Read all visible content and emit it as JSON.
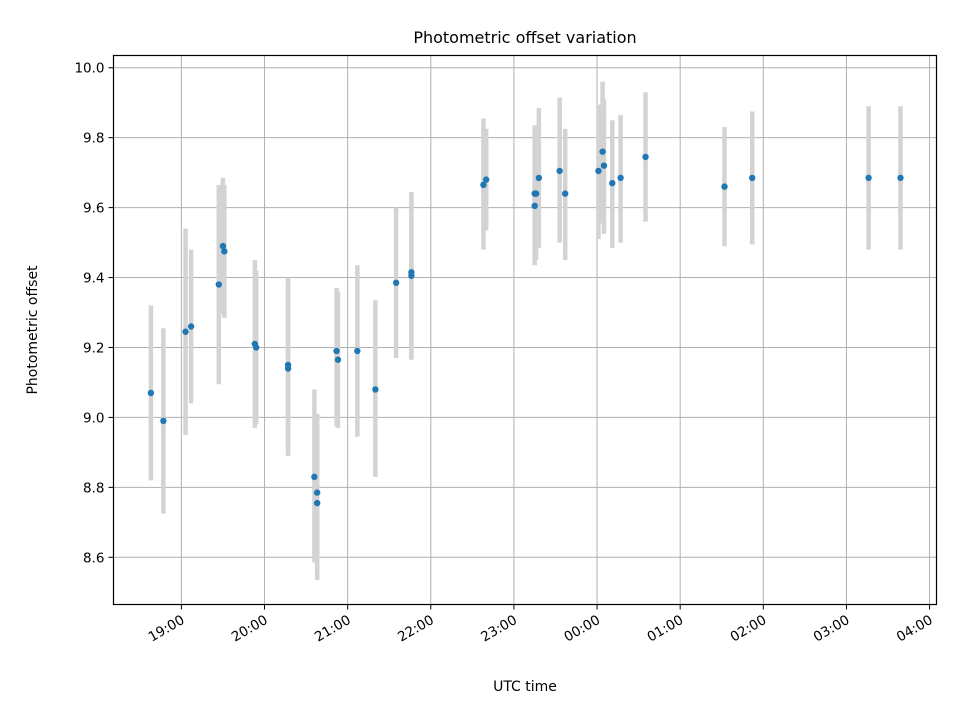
{
  "chart_data": {
    "type": "scatter",
    "title": "Photometric offset variation",
    "xlabel": "UTC time",
    "ylabel": "Photometric offset",
    "x_axis_type": "time",
    "x_ticks": [
      "19:00",
      "20:00",
      "21:00",
      "22:00",
      "23:00",
      "00:00",
      "01:00",
      "02:00",
      "03:00",
      "04:00"
    ],
    "xlim": [
      "18:11",
      "04:05"
    ],
    "y_ticks": [
      8.6,
      8.8,
      9.0,
      9.2,
      9.4,
      9.6,
      9.8,
      10.0
    ],
    "ylim": [
      8.465,
      10.035
    ],
    "grid": true,
    "marker_color": "#1f77b4",
    "errorbar_color": "#d3d3d3",
    "points": [
      {
        "t": "18:38",
        "y": 9.07,
        "ylo": 8.82,
        "yhi": 9.32
      },
      {
        "t": "18:47",
        "y": 8.99,
        "ylo": 8.725,
        "yhi": 9.255
      },
      {
        "t": "19:03",
        "y": 9.245,
        "ylo": 8.95,
        "yhi": 9.54
      },
      {
        "t": "19:07",
        "y": 9.26,
        "ylo": 9.04,
        "yhi": 9.48
      },
      {
        "t": "19:27",
        "y": 9.38,
        "ylo": 9.095,
        "yhi": 9.665
      },
      {
        "t": "19:30",
        "y": 9.49,
        "ylo": 9.295,
        "yhi": 9.685
      },
      {
        "t": "19:31",
        "y": 9.475,
        "ylo": 9.285,
        "yhi": 9.665
      },
      {
        "t": "19:53",
        "y": 9.21,
        "ylo": 8.97,
        "yhi": 9.45
      },
      {
        "t": "19:54",
        "y": 9.2,
        "ylo": 8.98,
        "yhi": 9.42
      },
      {
        "t": "20:17",
        "y": 9.15,
        "ylo": 8.9,
        "yhi": 9.4
      },
      {
        "t": "20:17",
        "y": 9.14,
        "ylo": 8.89,
        "yhi": 9.39
      },
      {
        "t": "20:36",
        "y": 8.83,
        "ylo": 8.585,
        "yhi": 9.08
      },
      {
        "t": "20:38",
        "y": 8.785,
        "ylo": 8.56,
        "yhi": 9.01
      },
      {
        "t": "20:38",
        "y": 8.755,
        "ylo": 8.535,
        "yhi": 8.98
      },
      {
        "t": "20:52",
        "y": 9.19,
        "ylo": 8.975,
        "yhi": 9.37
      },
      {
        "t": "20:53",
        "y": 9.165,
        "ylo": 8.97,
        "yhi": 9.36
      },
      {
        "t": "21:07",
        "y": 9.19,
        "ylo": 8.945,
        "yhi": 9.435
      },
      {
        "t": "21:20",
        "y": 9.08,
        "ylo": 8.83,
        "yhi": 9.335
      },
      {
        "t": "21:35",
        "y": 9.385,
        "ylo": 9.17,
        "yhi": 9.6
      },
      {
        "t": "21:46",
        "y": 9.415,
        "ylo": 9.165,
        "yhi": 9.645
      },
      {
        "t": "21:46",
        "y": 9.405,
        "ylo": 9.17,
        "yhi": 9.64
      },
      {
        "t": "22:38",
        "y": 9.665,
        "ylo": 9.48,
        "yhi": 9.855
      },
      {
        "t": "22:40",
        "y": 9.68,
        "ylo": 9.535,
        "yhi": 9.825
      },
      {
        "t": "23:15",
        "y": 9.64,
        "ylo": 9.445,
        "yhi": 9.835
      },
      {
        "t": "23:15",
        "y": 9.605,
        "ylo": 9.435,
        "yhi": 9.78
      },
      {
        "t": "23:16",
        "y": 9.64,
        "ylo": 9.45,
        "yhi": 9.83
      },
      {
        "t": "23:18",
        "y": 9.685,
        "ylo": 9.485,
        "yhi": 9.885
      },
      {
        "t": "23:33",
        "y": 9.705,
        "ylo": 9.5,
        "yhi": 9.915
      },
      {
        "t": "23:37",
        "y": 9.64,
        "ylo": 9.45,
        "yhi": 9.825
      },
      {
        "t": "00:01",
        "y": 9.705,
        "ylo": 9.51,
        "yhi": 9.895
      },
      {
        "t": "00:04",
        "y": 9.76,
        "ylo": 9.555,
        "yhi": 9.96
      },
      {
        "t": "00:05",
        "y": 9.72,
        "ylo": 9.525,
        "yhi": 9.91
      },
      {
        "t": "00:11",
        "y": 9.67,
        "ylo": 9.485,
        "yhi": 9.85
      },
      {
        "t": "00:17",
        "y": 9.685,
        "ylo": 9.5,
        "yhi": 9.865
      },
      {
        "t": "00:35",
        "y": 9.745,
        "ylo": 9.56,
        "yhi": 9.93
      },
      {
        "t": "01:32",
        "y": 9.66,
        "ylo": 9.49,
        "yhi": 9.83
      },
      {
        "t": "01:52",
        "y": 9.685,
        "ylo": 9.495,
        "yhi": 9.875
      },
      {
        "t": "03:16",
        "y": 9.685,
        "ylo": 9.48,
        "yhi": 9.89
      },
      {
        "t": "03:39",
        "y": 9.685,
        "ylo": 9.48,
        "yhi": 9.89
      }
    ]
  }
}
